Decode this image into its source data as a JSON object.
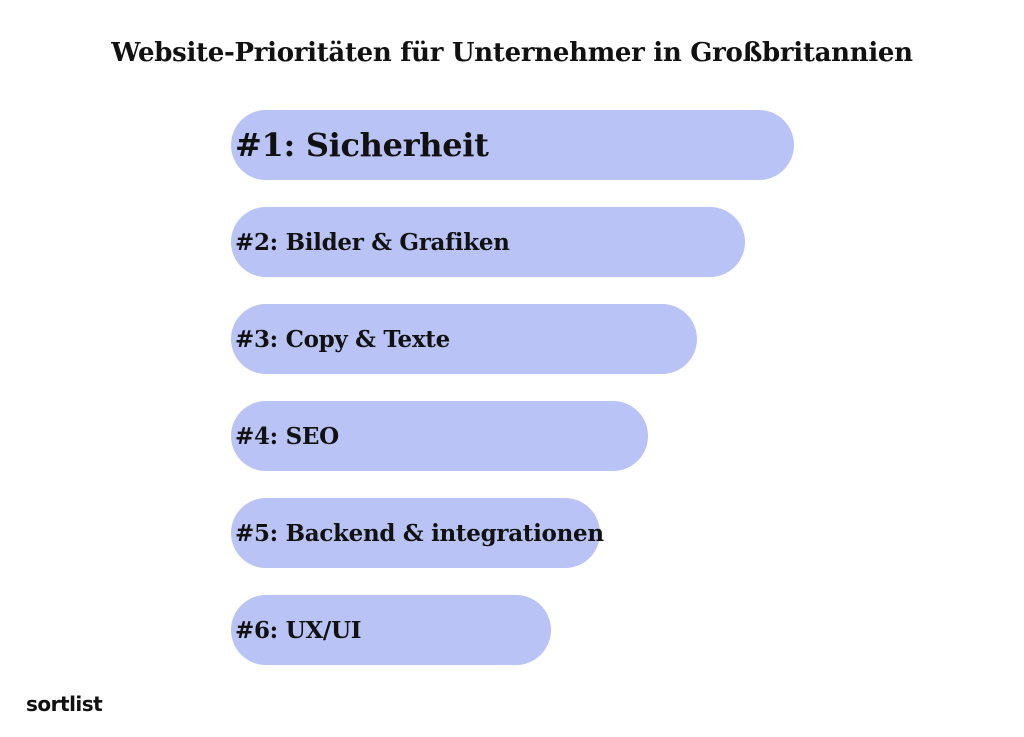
{
  "chart_data": {
    "type": "bar",
    "orientation": "horizontal",
    "title": "Website-Prioritäten für Unternehmer in Großbritannien",
    "categories": [
      "#1: Sicherheit",
      "#2: Bilder & Grafiken",
      "#3: Copy & Texte",
      "#4: SEO",
      "#5: Backend & integrationen",
      "#6: UX/UI"
    ],
    "ranks": [
      1,
      2,
      3,
      4,
      5,
      6
    ],
    "values": [
      6,
      5,
      4,
      3,
      2,
      1
    ],
    "bar_color": "#bac3f6",
    "grid": false,
    "legend": "none"
  },
  "brand": {
    "logo_text": "sortlist"
  }
}
